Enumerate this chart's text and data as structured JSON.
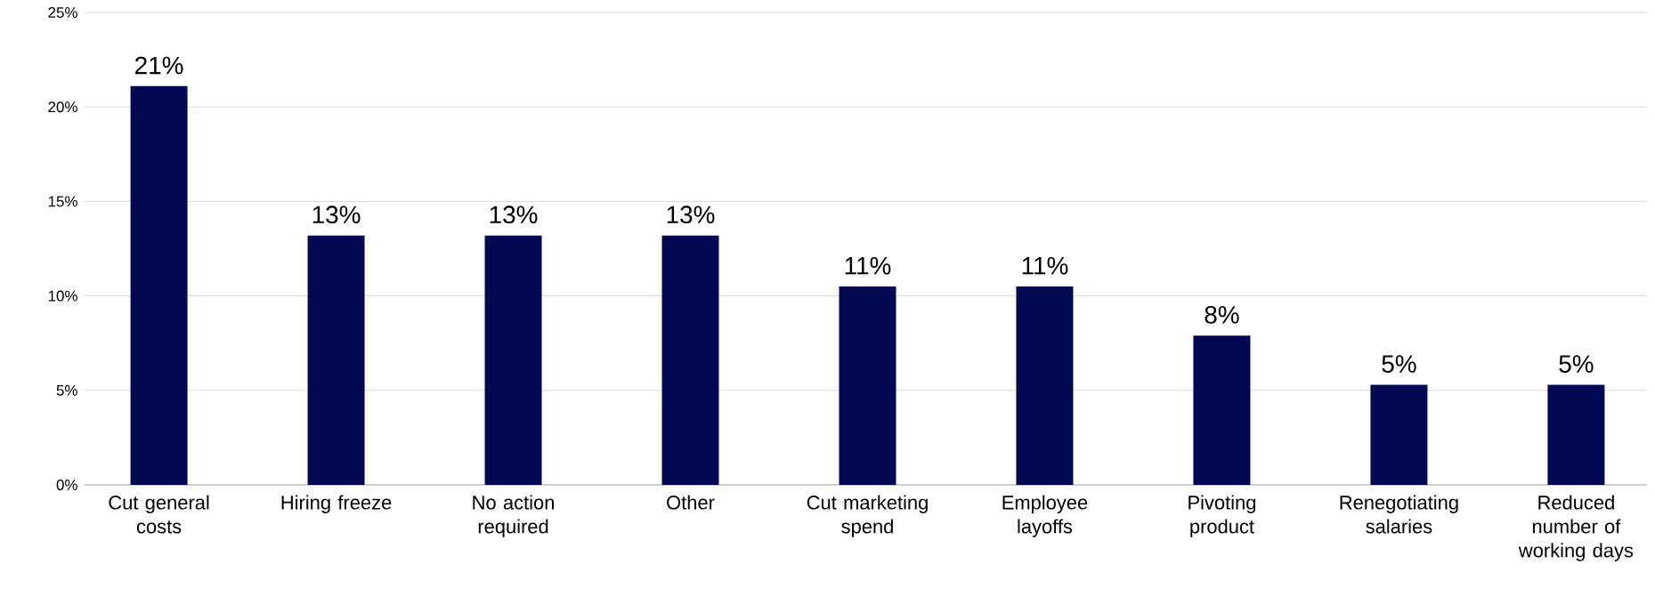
{
  "chart_data": {
    "type": "bar",
    "categories": [
      "Cut general costs",
      "Hiring freeze",
      "No action required",
      "Other",
      "Cut marketing spend",
      "Employee layoffs",
      "Pivoting product",
      "Renegotiating salaries",
      "Reduced number of working days"
    ],
    "values": [
      21.1,
      13.2,
      13.2,
      13.2,
      10.5,
      10.5,
      7.9,
      5.3,
      5.3
    ],
    "value_labels": [
      "21%",
      "13%",
      "13%",
      "13%",
      "11%",
      "11%",
      "8%",
      "5%",
      "5%"
    ],
    "color": "#020852",
    "ylim": [
      0,
      25
    ],
    "yticks": [
      {
        "value": 0,
        "label": "0%"
      },
      {
        "value": 5,
        "label": "5%"
      },
      {
        "value": 10,
        "label": "10%"
      },
      {
        "value": 15,
        "label": "15%"
      },
      {
        "value": 20,
        "label": "20%"
      },
      {
        "value": 25,
        "label": "25%"
      }
    ],
    "grid": "y"
  }
}
